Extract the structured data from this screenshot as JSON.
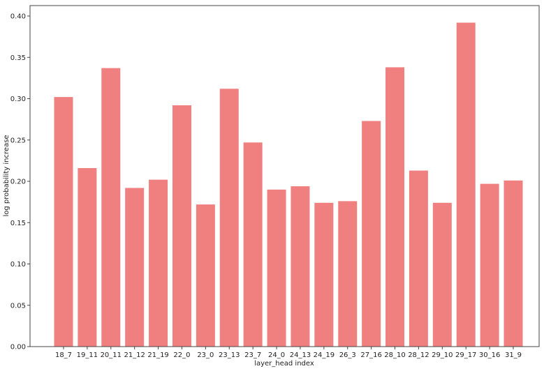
{
  "chart_data": {
    "type": "bar",
    "title": "",
    "xlabel": "layer_head index",
    "ylabel": "log probability increase",
    "categories": [
      "18_7",
      "19_11",
      "20_11",
      "21_12",
      "21_19",
      "22_0",
      "23_0",
      "23_13",
      "23_7",
      "24_0",
      "24_13",
      "24_19",
      "26_3",
      "27_16",
      "28_10",
      "28_12",
      "29_10",
      "29_17",
      "30_16",
      "31_9"
    ],
    "values": [
      0.302,
      0.216,
      0.337,
      0.192,
      0.202,
      0.292,
      0.172,
      0.312,
      0.247,
      0.19,
      0.194,
      0.174,
      0.176,
      0.273,
      0.338,
      0.213,
      0.174,
      0.392,
      0.197,
      0.201
    ],
    "ylim": [
      0,
      0.4
    ],
    "yticks": [
      "0.00",
      "0.05",
      "0.10",
      "0.15",
      "0.20",
      "0.25",
      "0.30",
      "0.35",
      "0.40"
    ],
    "grid": false,
    "bar_color": "#f08080"
  }
}
